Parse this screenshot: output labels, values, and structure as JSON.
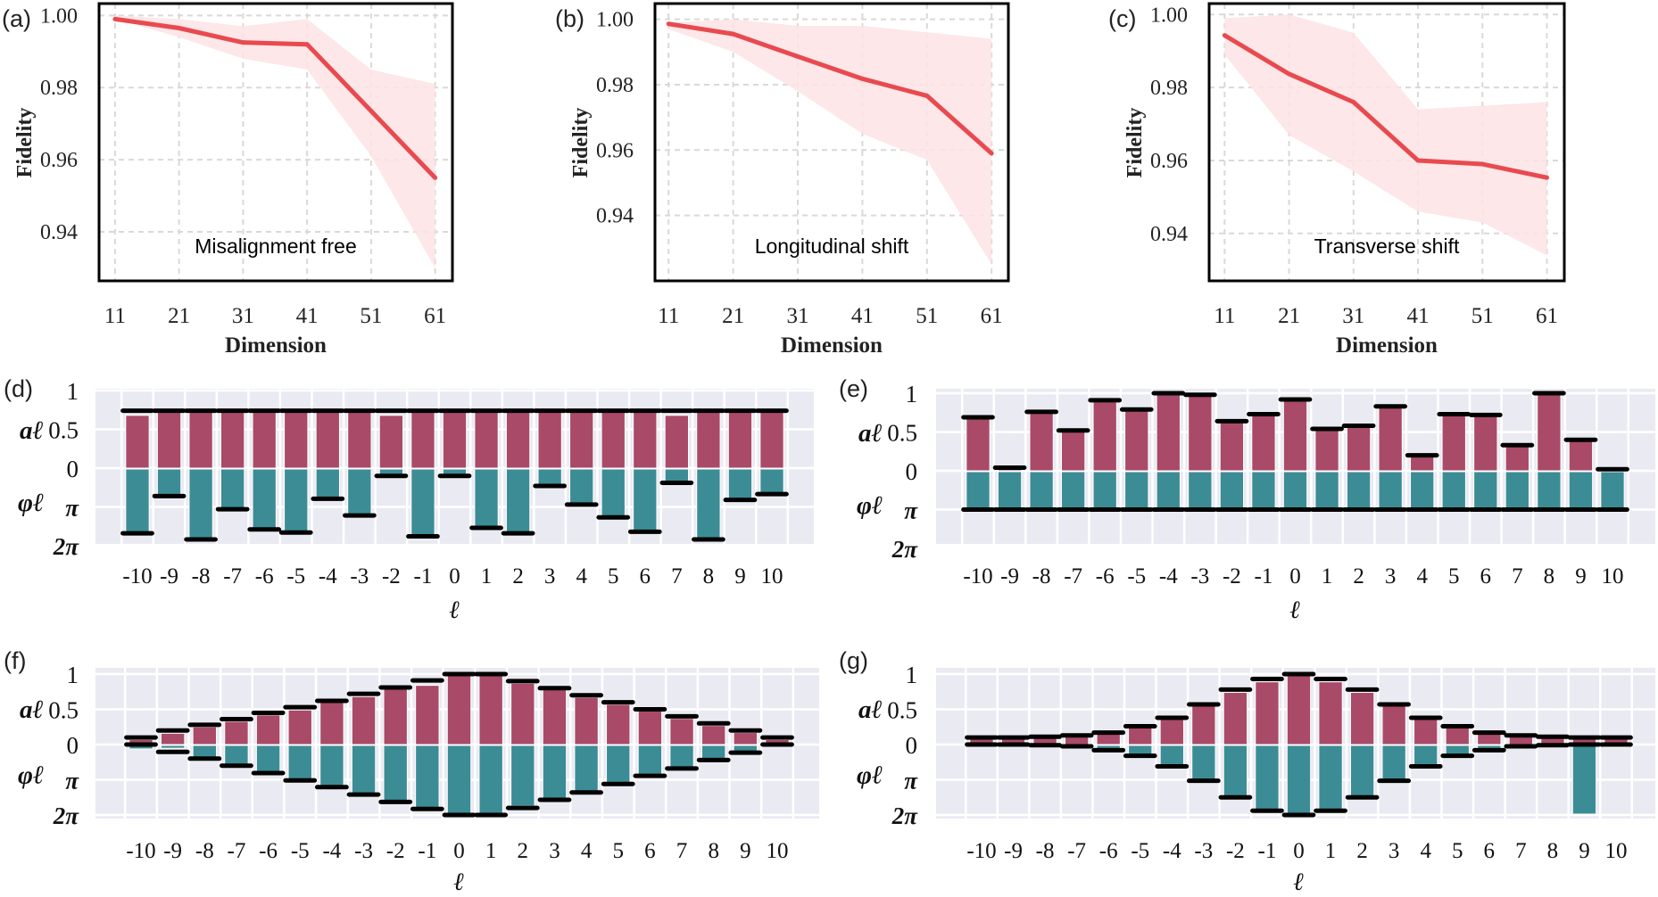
{
  "colors": {
    "line": "#e84a4f",
    "band": "#fde3e4",
    "amplitude": "#a94a68",
    "phase": "#3c8c95",
    "bar_bg": "#eaeaf2",
    "marker": "#000000",
    "grid": "#d9d9d9"
  },
  "chart_data": [
    {
      "panel": "(a)",
      "type": "line",
      "annotation": "Misalignment free",
      "xlabel": "Dimension",
      "ylabel": "Fidelity",
      "x": [
        11,
        21,
        31,
        41,
        51,
        61
      ],
      "x_ticks": [
        "11",
        "21",
        "31",
        "41",
        "51",
        "61"
      ],
      "y_ticks": [
        "1.00",
        "0.98",
        "0.96",
        "0.94"
      ],
      "ylim": [
        0.9264,
        1.0033
      ],
      "xlim": [
        8.5,
        63.7
      ],
      "grid": true,
      "band": true,
      "mean": [
        0.999,
        0.9965,
        0.9925,
        0.992,
        0.9735,
        0.955
      ],
      "upper": [
        1.0,
        0.999,
        0.997,
        0.999,
        0.985,
        0.981
      ],
      "lower": [
        0.999,
        0.994,
        0.988,
        0.985,
        0.961,
        0.93
      ]
    },
    {
      "panel": "(b)",
      "type": "line",
      "annotation": "Longitudinal shift",
      "xlabel": "Dimension",
      "ylabel": "Fidelity",
      "x": [
        11,
        21,
        31,
        41,
        51,
        61
      ],
      "x_ticks": [
        "11",
        "21",
        "31",
        "41",
        "51",
        "61"
      ],
      "y_ticks": [
        "1.00",
        "0.98",
        "0.96",
        "0.94"
      ],
      "ylim": [
        0.92,
        1.0048
      ],
      "xlim": [
        8.9,
        63.6
      ],
      "grid": true,
      "band": true,
      "mean": [
        0.9986,
        0.9955,
        0.9886,
        0.9818,
        0.9766,
        0.959
      ],
      "upper": [
        0.999,
        1.0,
        0.998,
        0.998,
        0.996,
        0.994
      ],
      "lower": [
        0.997,
        0.99,
        0.978,
        0.965,
        0.957,
        0.925
      ]
    },
    {
      "panel": "(c)",
      "type": "line",
      "annotation": "Transverse shift",
      "xlabel": "Dimension",
      "ylabel": "Fidelity",
      "x": [
        11,
        21,
        31,
        41,
        51,
        61
      ],
      "x_ticks": [
        "11",
        "21",
        "31",
        "41",
        "51",
        "61"
      ],
      "y_ticks": [
        "1.00",
        "0.98",
        "0.96",
        "0.94"
      ],
      "ylim": [
        0.927,
        1.003
      ],
      "xlim": [
        8.6,
        63.7
      ],
      "grid": true,
      "band": true,
      "mean": [
        0.9943,
        0.9837,
        0.976,
        0.96,
        0.959,
        0.9553
      ],
      "upper": [
        0.999,
        1.0,
        0.995,
        0.974,
        0.975,
        0.976
      ],
      "lower": [
        0.989,
        0.967,
        0.957,
        0.946,
        0.943,
        0.934
      ]
    },
    {
      "panel": "(d)",
      "type": "bar",
      "xlabel": "ℓ",
      "ylabel_amp": "aℓ",
      "ylabel_phase": "φℓ",
      "y_ticks": [
        "1",
        "0.5",
        "0",
        "π",
        "2π"
      ],
      "categories": [
        "-10",
        "-9",
        "-8",
        "-7",
        "-6",
        "-5",
        "-4",
        "-3",
        "-2",
        "-1",
        "0",
        "1",
        "2",
        "3",
        "4",
        "5",
        "6",
        "7",
        "8",
        "9",
        "10"
      ],
      "amplitude": [
        0.68,
        0.72,
        0.72,
        0.72,
        0.72,
        0.72,
        0.72,
        0.72,
        0.68,
        0.72,
        0.72,
        0.72,
        0.72,
        0.72,
        0.72,
        0.72,
        0.72,
        0.68,
        0.72,
        0.72,
        0.72
      ],
      "amplitude_target": [
        0.74,
        0.74,
        0.74,
        0.74,
        0.74,
        0.74,
        0.74,
        0.74,
        0.74,
        0.74,
        0.74,
        0.74,
        0.74,
        0.74,
        0.74,
        0.74,
        0.74,
        0.74,
        0.74,
        0.74,
        0.74
      ],
      "phase_over_pi": [
        1.66,
        0.7,
        1.82,
        1.04,
        1.56,
        1.64,
        0.77,
        1.2,
        0.18,
        1.74,
        0.18,
        1.52,
        1.66,
        0.44,
        0.92,
        1.25,
        1.62,
        0.36,
        1.82,
        0.8,
        0.65
      ],
      "phase_target_over_pi": [
        1.68,
        0.72,
        1.84,
        1.06,
        1.58,
        1.66,
        0.79,
        1.22,
        0.2,
        1.76,
        0.2,
        1.54,
        1.68,
        0.46,
        0.94,
        1.27,
        1.64,
        0.38,
        1.84,
        0.82,
        0.67
      ]
    },
    {
      "panel": "(e)",
      "type": "bar",
      "xlabel": "ℓ",
      "ylabel_amp": "aℓ",
      "ylabel_phase": "φℓ",
      "y_ticks": [
        "1",
        "0.5",
        "0",
        "π",
        "2π"
      ],
      "categories": [
        "-10",
        "-9",
        "-8",
        "-7",
        "-6",
        "-5",
        "-4",
        "-3",
        "-2",
        "-1",
        "0",
        "1",
        "2",
        "3",
        "4",
        "5",
        "6",
        "7",
        "8",
        "9",
        "10"
      ],
      "amplitude": [
        0.67,
        0.02,
        0.74,
        0.5,
        0.89,
        0.77,
        0.98,
        0.96,
        0.62,
        0.71,
        0.9,
        0.52,
        0.56,
        0.81,
        0.18,
        0.71,
        0.7,
        0.31,
        0.98,
        0.38,
        0.01
      ],
      "amplitude_target": [
        0.69,
        0.04,
        0.76,
        0.52,
        0.91,
        0.79,
        1.0,
        0.98,
        0.64,
        0.73,
        0.92,
        0.54,
        0.58,
        0.83,
        0.2,
        0.73,
        0.72,
        0.33,
        1.0,
        0.4,
        0.02
      ],
      "phase_over_pi": [
        1,
        1,
        1,
        1,
        1,
        1,
        1,
        1,
        1,
        1,
        1,
        1,
        1,
        1,
        1,
        1,
        1,
        1,
        1,
        1,
        1
      ],
      "phase_target_over_pi": [
        1,
        1,
        1,
        1,
        1,
        1,
        1,
        1,
        1,
        1,
        1,
        1,
        1,
        1,
        1,
        1,
        1,
        1,
        1,
        1,
        1
      ]
    },
    {
      "panel": "(f)",
      "type": "bar",
      "xlabel": "ℓ",
      "ylabel_amp": "aℓ",
      "ylabel_phase": "φℓ",
      "y_ticks": [
        "1",
        "0.5",
        "0",
        "π",
        "2π"
      ],
      "categories": [
        "-10",
        "-9",
        "-8",
        "-7",
        "-6",
        "-5",
        "-4",
        "-3",
        "-2",
        "-1",
        "0",
        "1",
        "2",
        "3",
        "4",
        "5",
        "6",
        "7",
        "8",
        "9",
        "10"
      ],
      "amplitude": [
        0.07,
        0.16,
        0.25,
        0.33,
        0.42,
        0.49,
        0.6,
        0.68,
        0.79,
        0.84,
        0.98,
        0.98,
        0.87,
        0.78,
        0.67,
        0.57,
        0.48,
        0.37,
        0.27,
        0.17,
        0.07
      ],
      "amplitude_target": [
        0.1,
        0.2,
        0.28,
        0.36,
        0.45,
        0.53,
        0.62,
        0.72,
        0.81,
        0.91,
        1.0,
        1.0,
        0.9,
        0.8,
        0.7,
        0.6,
        0.5,
        0.4,
        0.3,
        0.2,
        0.1
      ],
      "phase_over_pi": [
        0.1,
        0.08,
        0.38,
        0.58,
        0.79,
        1.0,
        1.19,
        1.4,
        1.6,
        1.8,
        2.0,
        2.0,
        1.72,
        1.55,
        1.34,
        1.1,
        0.87,
        0.66,
        0.42,
        0.21,
        0.02
      ],
      "phase_target_over_pi": [
        0,
        0.21,
        0.4,
        0.6,
        0.81,
        1.02,
        1.21,
        1.42,
        1.63,
        1.83,
        2.0,
        2.0,
        1.8,
        1.57,
        1.36,
        1.12,
        0.89,
        0.68,
        0.44,
        0.23,
        0
      ]
    },
    {
      "panel": "(g)",
      "type": "bar",
      "xlabel": "ℓ",
      "ylabel_amp": "aℓ",
      "ylabel_phase": "φℓ",
      "y_ticks": [
        "1",
        "0.5",
        "0",
        "π",
        "2π"
      ],
      "categories": [
        "-10",
        "-9",
        "-8",
        "-7",
        "-6",
        "-5",
        "-4",
        "-3",
        "-2",
        "-1",
        "0",
        "1",
        "2",
        "3",
        "4",
        "5",
        "6",
        "7",
        "8",
        "9",
        "10"
      ],
      "amplitude": [
        0.08,
        0.08,
        0.09,
        0.11,
        0.15,
        0.24,
        0.36,
        0.55,
        0.74,
        0.89,
        0.98,
        0.89,
        0.74,
        0.55,
        0.36,
        0.24,
        0.15,
        0.11,
        0.09,
        0.08,
        0.08
      ],
      "amplitude_target": [
        0.1,
        0.1,
        0.11,
        0.13,
        0.17,
        0.26,
        0.38,
        0.57,
        0.78,
        0.93,
        1.0,
        0.93,
        0.78,
        0.57,
        0.38,
        0.26,
        0.17,
        0.13,
        0.11,
        0.1,
        0.1
      ],
      "phase_over_pi": [
        0,
        0,
        0.02,
        0.05,
        0.1,
        0.3,
        0.6,
        1.0,
        1.5,
        1.88,
        2.0,
        1.88,
        1.5,
        1.0,
        0.6,
        0.3,
        0.1,
        0.05,
        0.02,
        1.95,
        0.05
      ],
      "phase_target_over_pi": [
        0,
        0,
        0.02,
        0.05,
        0.16,
        0.32,
        0.62,
        1.03,
        1.5,
        1.88,
        2.0,
        1.88,
        1.5,
        1.03,
        0.62,
        0.32,
        0.16,
        0.05,
        0.02,
        0,
        0
      ]
    }
  ]
}
